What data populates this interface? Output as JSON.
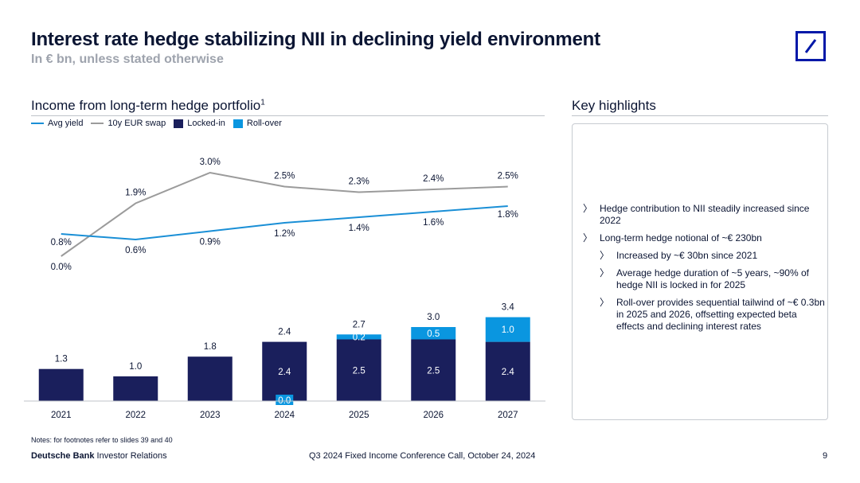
{
  "header": {
    "title": "Interest rate hedge stabilizing NII in declining yield environment",
    "subtitle": "In € bn, unless stated otherwise"
  },
  "left_section": {
    "title": "Income from long-term hedge portfolio",
    "superscript": "1"
  },
  "right_section": {
    "title": "Key highlights"
  },
  "legend": [
    {
      "label": "Avg yield",
      "kind": "line",
      "color": "#1a8fd6"
    },
    {
      "label": "10y EUR swap",
      "kind": "line",
      "color": "#9b9b9b"
    },
    {
      "label": "Locked-in",
      "kind": "box",
      "color": "#1a1f5c"
    },
    {
      "label": "Roll-over",
      "kind": "box",
      "color": "#0a96e0"
    }
  ],
  "chart_data": {
    "type": "bar",
    "categories": [
      "2021",
      "2022",
      "2023",
      "2024",
      "2025",
      "2026",
      "2027"
    ],
    "series": [
      {
        "name": "Locked-in",
        "type": "bar",
        "color": "#1a1f5c",
        "values": [
          1.3,
          1.0,
          1.8,
          2.4,
          2.5,
          2.5,
          2.4
        ],
        "labels": [
          "",
          "",
          "",
          "2.4",
          "2.5",
          "2.5",
          "2.4"
        ]
      },
      {
        "name": "Roll-over",
        "type": "bar",
        "color": "#0a96e0",
        "values": [
          0,
          0,
          0,
          0.0,
          0.2,
          0.5,
          1.0
        ],
        "labels": [
          "",
          "",
          "",
          "0.0",
          "0.2",
          "0.5",
          "1.0"
        ]
      },
      {
        "name": "Avg yield",
        "type": "line",
        "unit": "%",
        "color": "#1a8fd6",
        "values": [
          0.8,
          0.6,
          0.9,
          1.2,
          1.4,
          1.6,
          1.8
        ],
        "labels": [
          "0.8%",
          "0.6%",
          "0.9%",
          "1.2%",
          "1.4%",
          "1.6%",
          "1.8%"
        ]
      },
      {
        "name": "10y EUR swap",
        "type": "line",
        "unit": "%",
        "color": "#9b9b9b",
        "values": [
          0.0,
          1.9,
          3.0,
          2.5,
          2.3,
          2.4,
          2.5
        ],
        "labels": [
          "0.0%",
          "1.9%",
          "3.0%",
          "2.5%",
          "2.3%",
          "2.4%",
          "2.5%"
        ]
      }
    ],
    "totals": [
      "1.3",
      "1.0",
      "1.8",
      "2.4",
      "2.7",
      "3.0",
      "3.4"
    ],
    "total_values": [
      1.3,
      1.0,
      1.8,
      2.4,
      2.7,
      3.0,
      3.4
    ],
    "title": "Income from long-term hedge portfolio",
    "ylabel": "€ bn",
    "ylim": [
      0,
      3.6
    ],
    "grid": false
  },
  "highlights": [
    {
      "text": "Hedge contribution to NII steadily increased since 2022",
      "level": 1
    },
    {
      "text": "Long-term hedge notional of ~€ 230bn",
      "level": 1
    },
    {
      "text": "Increased by ~€ 30bn since 2021",
      "level": 2
    },
    {
      "text": "Average hedge duration of  ~5 years, ~90% of hedge NII is locked in for 2025",
      "level": 2
    },
    {
      "text": "Roll-over provides sequential tailwind of ~€ 0.3bn  in 2025 and 2026, offsetting expected beta effects and declining interest rates",
      "level": 2
    }
  ],
  "bullet_mark": "〉",
  "footer": {
    "notes": "Notes: for footnotes refer to slides 39 and 40",
    "brand_bold": "Deutsche Bank",
    "brand_rest": " Investor Relations",
    "event": "Q3 2024 Fixed Income Conference Call, October 24, 2024",
    "page": "9"
  }
}
